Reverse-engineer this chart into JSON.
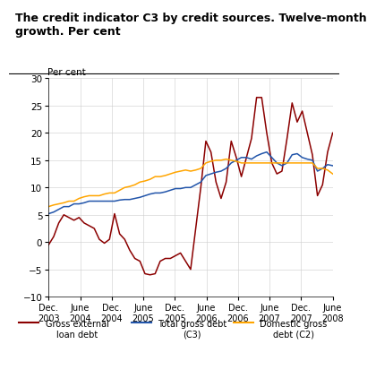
{
  "title": "The credit indicator C3 by credit sources. Twelve-month\ngrowth. Per cent",
  "ylabel": "Per cent",
  "ylim": [
    -10,
    30
  ],
  "yticks": [
    -10,
    -5,
    0,
    5,
    10,
    15,
    20,
    25,
    30
  ],
  "xtick_labels": [
    "Dec.\n2003",
    "June\n2004",
    "Dec.\n2004",
    "June\n2005",
    "Dec.\n2005",
    "June\n2006",
    "Dec.\n2006",
    "June\n2007",
    "Dec.\n2007",
    "June\n2008"
  ],
  "gross_external_color": "#8B0000",
  "total_gross_color": "#2255AA",
  "domestic_gross_color": "#FFA500",
  "legend_labels": [
    "Gross external\nloan debt",
    "Total gross debt\n(C3)",
    "Domestic gross\ndebt (C2)"
  ],
  "gross_external_data": [
    -0.5,
    1.0,
    3.5,
    5.0,
    4.5,
    4.0,
    4.5,
    3.5,
    3.0,
    2.5,
    0.5,
    -0.2,
    0.5,
    5.2,
    1.5,
    0.5,
    -1.5,
    -3.0,
    -3.5,
    -5.8,
    -6.0,
    -5.8,
    -3.5,
    -3.0,
    -3.0,
    -2.5,
    -2.0,
    -3.5,
    -5.0,
    2.5,
    10.0,
    18.5,
    16.5,
    11.0,
    8.0,
    11.0,
    18.5,
    15.5,
    12.0,
    15.5,
    19.0,
    26.5,
    26.5,
    20.0,
    14.5,
    12.5,
    13.0,
    19.0,
    25.5,
    22.0,
    24.0,
    20.0,
    16.0,
    8.5,
    10.5,
    16.5,
    20.0
  ],
  "total_gross_data": [
    5.2,
    5.5,
    6.0,
    6.5,
    6.5,
    7.0,
    7.0,
    7.2,
    7.5,
    7.5,
    7.5,
    7.5,
    7.5,
    7.5,
    7.7,
    7.8,
    7.8,
    8.0,
    8.2,
    8.5,
    8.8,
    9.0,
    9.0,
    9.2,
    9.5,
    9.8,
    9.8,
    10.0,
    10.0,
    10.5,
    11.0,
    12.2,
    12.5,
    12.8,
    13.0,
    13.5,
    14.5,
    15.0,
    15.5,
    15.5,
    15.2,
    15.8,
    16.2,
    16.5,
    15.5,
    14.5,
    14.0,
    14.5,
    16.0,
    16.2,
    15.5,
    15.2,
    15.0,
    13.0,
    13.5,
    14.2,
    14.0
  ],
  "domestic_gross_data": [
    6.5,
    6.8,
    7.0,
    7.2,
    7.5,
    7.5,
    8.0,
    8.3,
    8.5,
    8.5,
    8.5,
    8.8,
    9.0,
    9.0,
    9.5,
    10.0,
    10.2,
    10.5,
    11.0,
    11.2,
    11.5,
    12.0,
    12.0,
    12.2,
    12.5,
    12.8,
    13.0,
    13.2,
    13.0,
    13.2,
    13.5,
    14.5,
    14.8,
    15.0,
    15.0,
    15.2,
    15.0,
    14.8,
    14.5,
    14.5,
    14.5,
    14.5,
    14.5,
    14.5,
    14.5,
    14.5,
    14.5,
    14.5,
    14.5,
    14.5,
    14.5,
    14.5,
    14.5,
    13.5,
    13.5,
    13.2,
    12.5
  ]
}
